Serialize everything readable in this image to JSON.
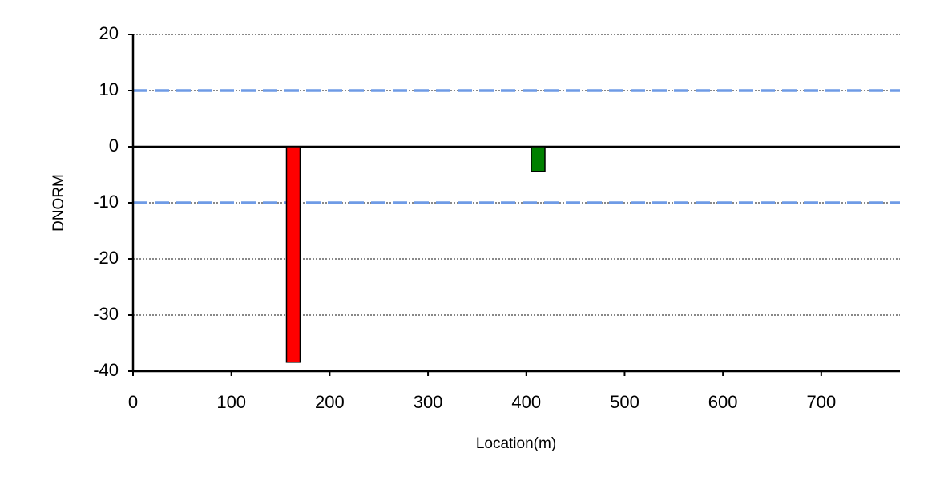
{
  "chart_data": {
    "type": "bar",
    "x_label": "Location(m)",
    "y_label": "DNORM",
    "x": [
      163,
      412
    ],
    "values": [
      -38.4,
      -4.4
    ],
    "colors": [
      "#ff0000",
      "#008000"
    ],
    "xlim": [
      0,
      780
    ],
    "ylim": [
      -40,
      20
    ],
    "xticks": [
      0,
      100,
      200,
      300,
      400,
      500,
      600,
      700
    ],
    "yticks": [
      -40,
      -30,
      -20,
      -10,
      0,
      10,
      20
    ],
    "grid": true,
    "reference_lines": [
      10,
      -10
    ],
    "reference_color": "#6f9be6"
  }
}
